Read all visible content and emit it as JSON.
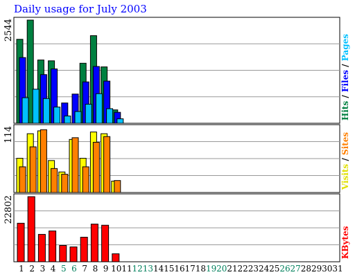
{
  "chart_data": {
    "type": "bar",
    "title": "Daily usage for July 2003",
    "x": [
      "1",
      "2",
      "3",
      "4",
      "5",
      "6",
      "7",
      "8",
      "9",
      "10",
      "11",
      "12",
      "13",
      "14",
      "15",
      "16",
      "17",
      "18",
      "19",
      "20",
      "21",
      "22",
      "23",
      "24",
      "25",
      "26",
      "27",
      "28",
      "29",
      "30",
      "31"
    ],
    "weekend_days": [
      5,
      6,
      12,
      13,
      19,
      20,
      26,
      27
    ],
    "panels": [
      {
        "id": "hits_files_pages",
        "ymax_label": "2544",
        "ymax": 2544,
        "gridlines": true,
        "right_labels": [
          {
            "text": "Hits",
            "color": "#008040"
          },
          {
            "text": " / ",
            "color": "#000000"
          },
          {
            "text": "Files",
            "color": "#0000ff"
          },
          {
            "text": " / ",
            "color": "#000000"
          },
          {
            "text": "Pages",
            "color": "#00c0ff"
          }
        ],
        "series": [
          {
            "name": "Hits",
            "color": "#008040",
            "values": [
              2070,
              2544,
              1560,
              1540,
              0,
              0,
              1480,
              2160,
              1390,
              330,
              0,
              0,
              0,
              0,
              0,
              0,
              0,
              0,
              0,
              0,
              0,
              0,
              0,
              0,
              0,
              0,
              0,
              0,
              0,
              0,
              0
            ]
          },
          {
            "name": "Files",
            "color": "#0000ff",
            "values": [
              1620,
              0,
              1200,
              1340,
              500,
              720,
              1020,
              1400,
              1040,
              270,
              0,
              0,
              0,
              0,
              0,
              0,
              0,
              0,
              0,
              0,
              0,
              0,
              0,
              0,
              0,
              0,
              0,
              0,
              0,
              0,
              0
            ]
          },
          {
            "name": "Pages",
            "color": "#00c0ff",
            "values": [
              630,
              840,
              610,
              400,
              180,
              290,
              470,
              730,
              360,
              110,
              0,
              0,
              0,
              0,
              0,
              0,
              0,
              0,
              0,
              0,
              0,
              0,
              0,
              0,
              0,
              0,
              0,
              0,
              0,
              0,
              0
            ]
          }
        ]
      },
      {
        "id": "visits_sites",
        "ymax_label": "114",
        "ymax": 114,
        "gridlines": true,
        "right_labels": [
          {
            "text": "Visits",
            "color": "#e0e000"
          },
          {
            "text": " / ",
            "color": "#000000"
          },
          {
            "text": "Sites",
            "color": "#ff8000"
          }
        ],
        "series": [
          {
            "name": "Visits",
            "color": "#ffff00",
            "values": [
              60,
              103,
              108,
              56,
              36,
              93,
              60,
              106,
              103,
              20,
              0,
              0,
              0,
              0,
              0,
              0,
              0,
              0,
              0,
              0,
              0,
              0,
              0,
              0,
              0,
              0,
              0,
              0,
              0,
              0,
              0
            ]
          },
          {
            "name": "Sites",
            "color": "#ff8000",
            "values": [
              45,
              80,
              110,
              42,
              32,
              96,
              45,
              88,
              98,
              21,
              0,
              0,
              0,
              0,
              0,
              0,
              0,
              0,
              0,
              0,
              0,
              0,
              0,
              0,
              0,
              0,
              0,
              0,
              0,
              0,
              0
            ]
          }
        ]
      },
      {
        "id": "kbytes",
        "ymax_label": "22802",
        "ymax": 22802,
        "gridlines": true,
        "right_labels": [
          {
            "text": "KBytes",
            "color": "#ff0000"
          }
        ],
        "series": [
          {
            "name": "KBytes",
            "color": "#ff0000",
            "values": [
              13500,
              22802,
              9600,
              10800,
              5700,
              5200,
              8600,
              13200,
              12800,
              2800,
              0,
              0,
              0,
              0,
              0,
              0,
              0,
              0,
              0,
              0,
              0,
              0,
              0,
              0,
              0,
              0,
              0,
              0,
              0,
              0,
              0
            ]
          }
        ]
      }
    ]
  },
  "colors": {
    "weekday_label": "#000000",
    "weekend_label": "#00805c",
    "gridline": "#999999",
    "border": "#000000"
  }
}
